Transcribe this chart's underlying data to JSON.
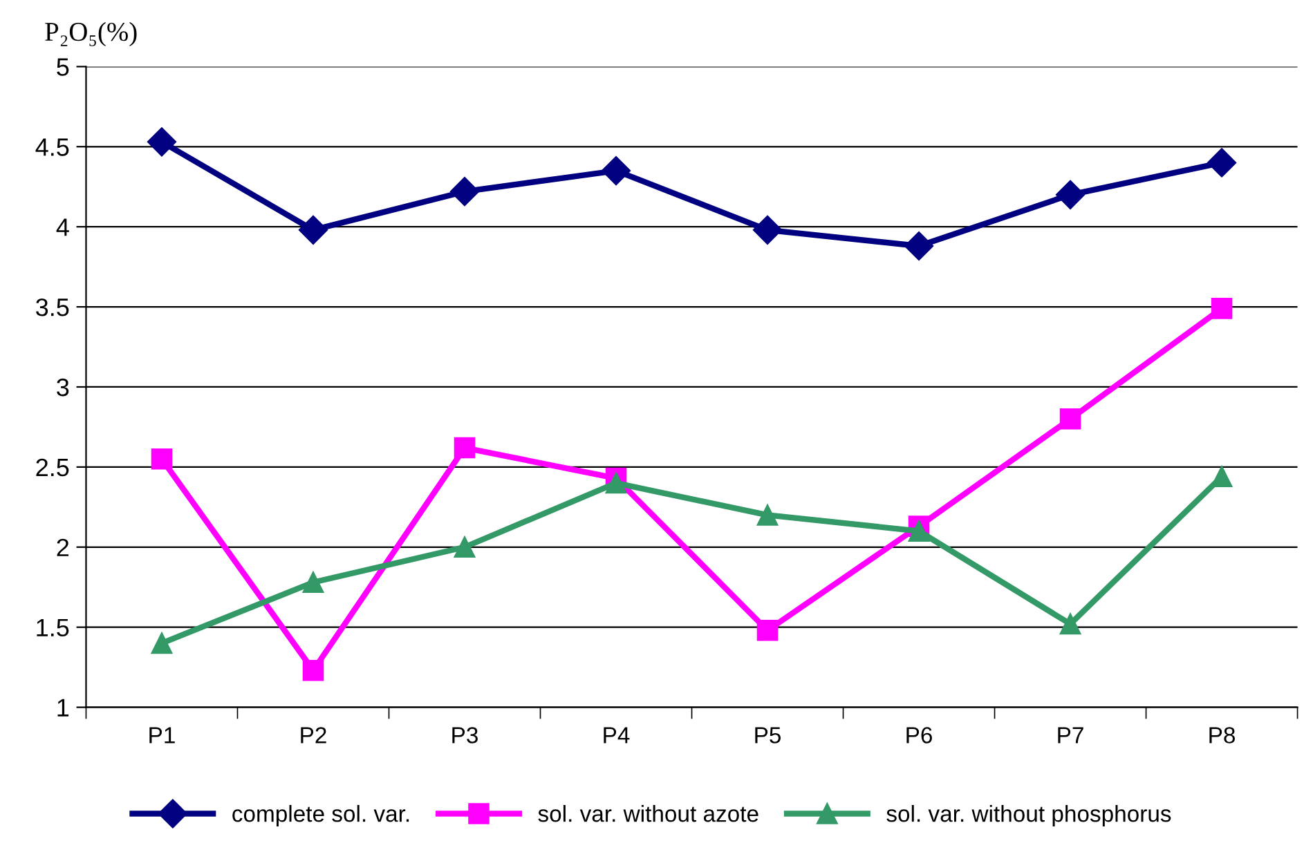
{
  "chart_data": {
    "type": "line",
    "ylabel": "P₂O₅(%)",
    "categories": [
      "P1",
      "P2",
      "P3",
      "P4",
      "P5",
      "P6",
      "P7",
      "P8"
    ],
    "series": [
      {
        "name": "complete sol. var.",
        "color": "#000080",
        "marker": "diamond",
        "values": [
          4.53,
          3.98,
          4.22,
          4.35,
          3.98,
          3.88,
          4.2,
          4.4
        ]
      },
      {
        "name": "sol. var. without azote",
        "color": "#ff00ff",
        "marker": "square",
        "values": [
          2.55,
          1.23,
          2.62,
          2.43,
          1.48,
          2.13,
          2.8,
          3.49
        ]
      },
      {
        "name": "sol. var. without phosphorus",
        "color": "#339966",
        "marker": "triangle",
        "values": [
          1.4,
          1.78,
          2.0,
          2.4,
          2.2,
          2.1,
          1.52,
          2.44
        ]
      }
    ],
    "ylim": [
      1,
      5
    ],
    "yticks": [
      1,
      1.5,
      2,
      2.5,
      3,
      3.5,
      4,
      4.5,
      5
    ],
    "grid": "y",
    "legend": "bottom",
    "line_style": "solid"
  }
}
